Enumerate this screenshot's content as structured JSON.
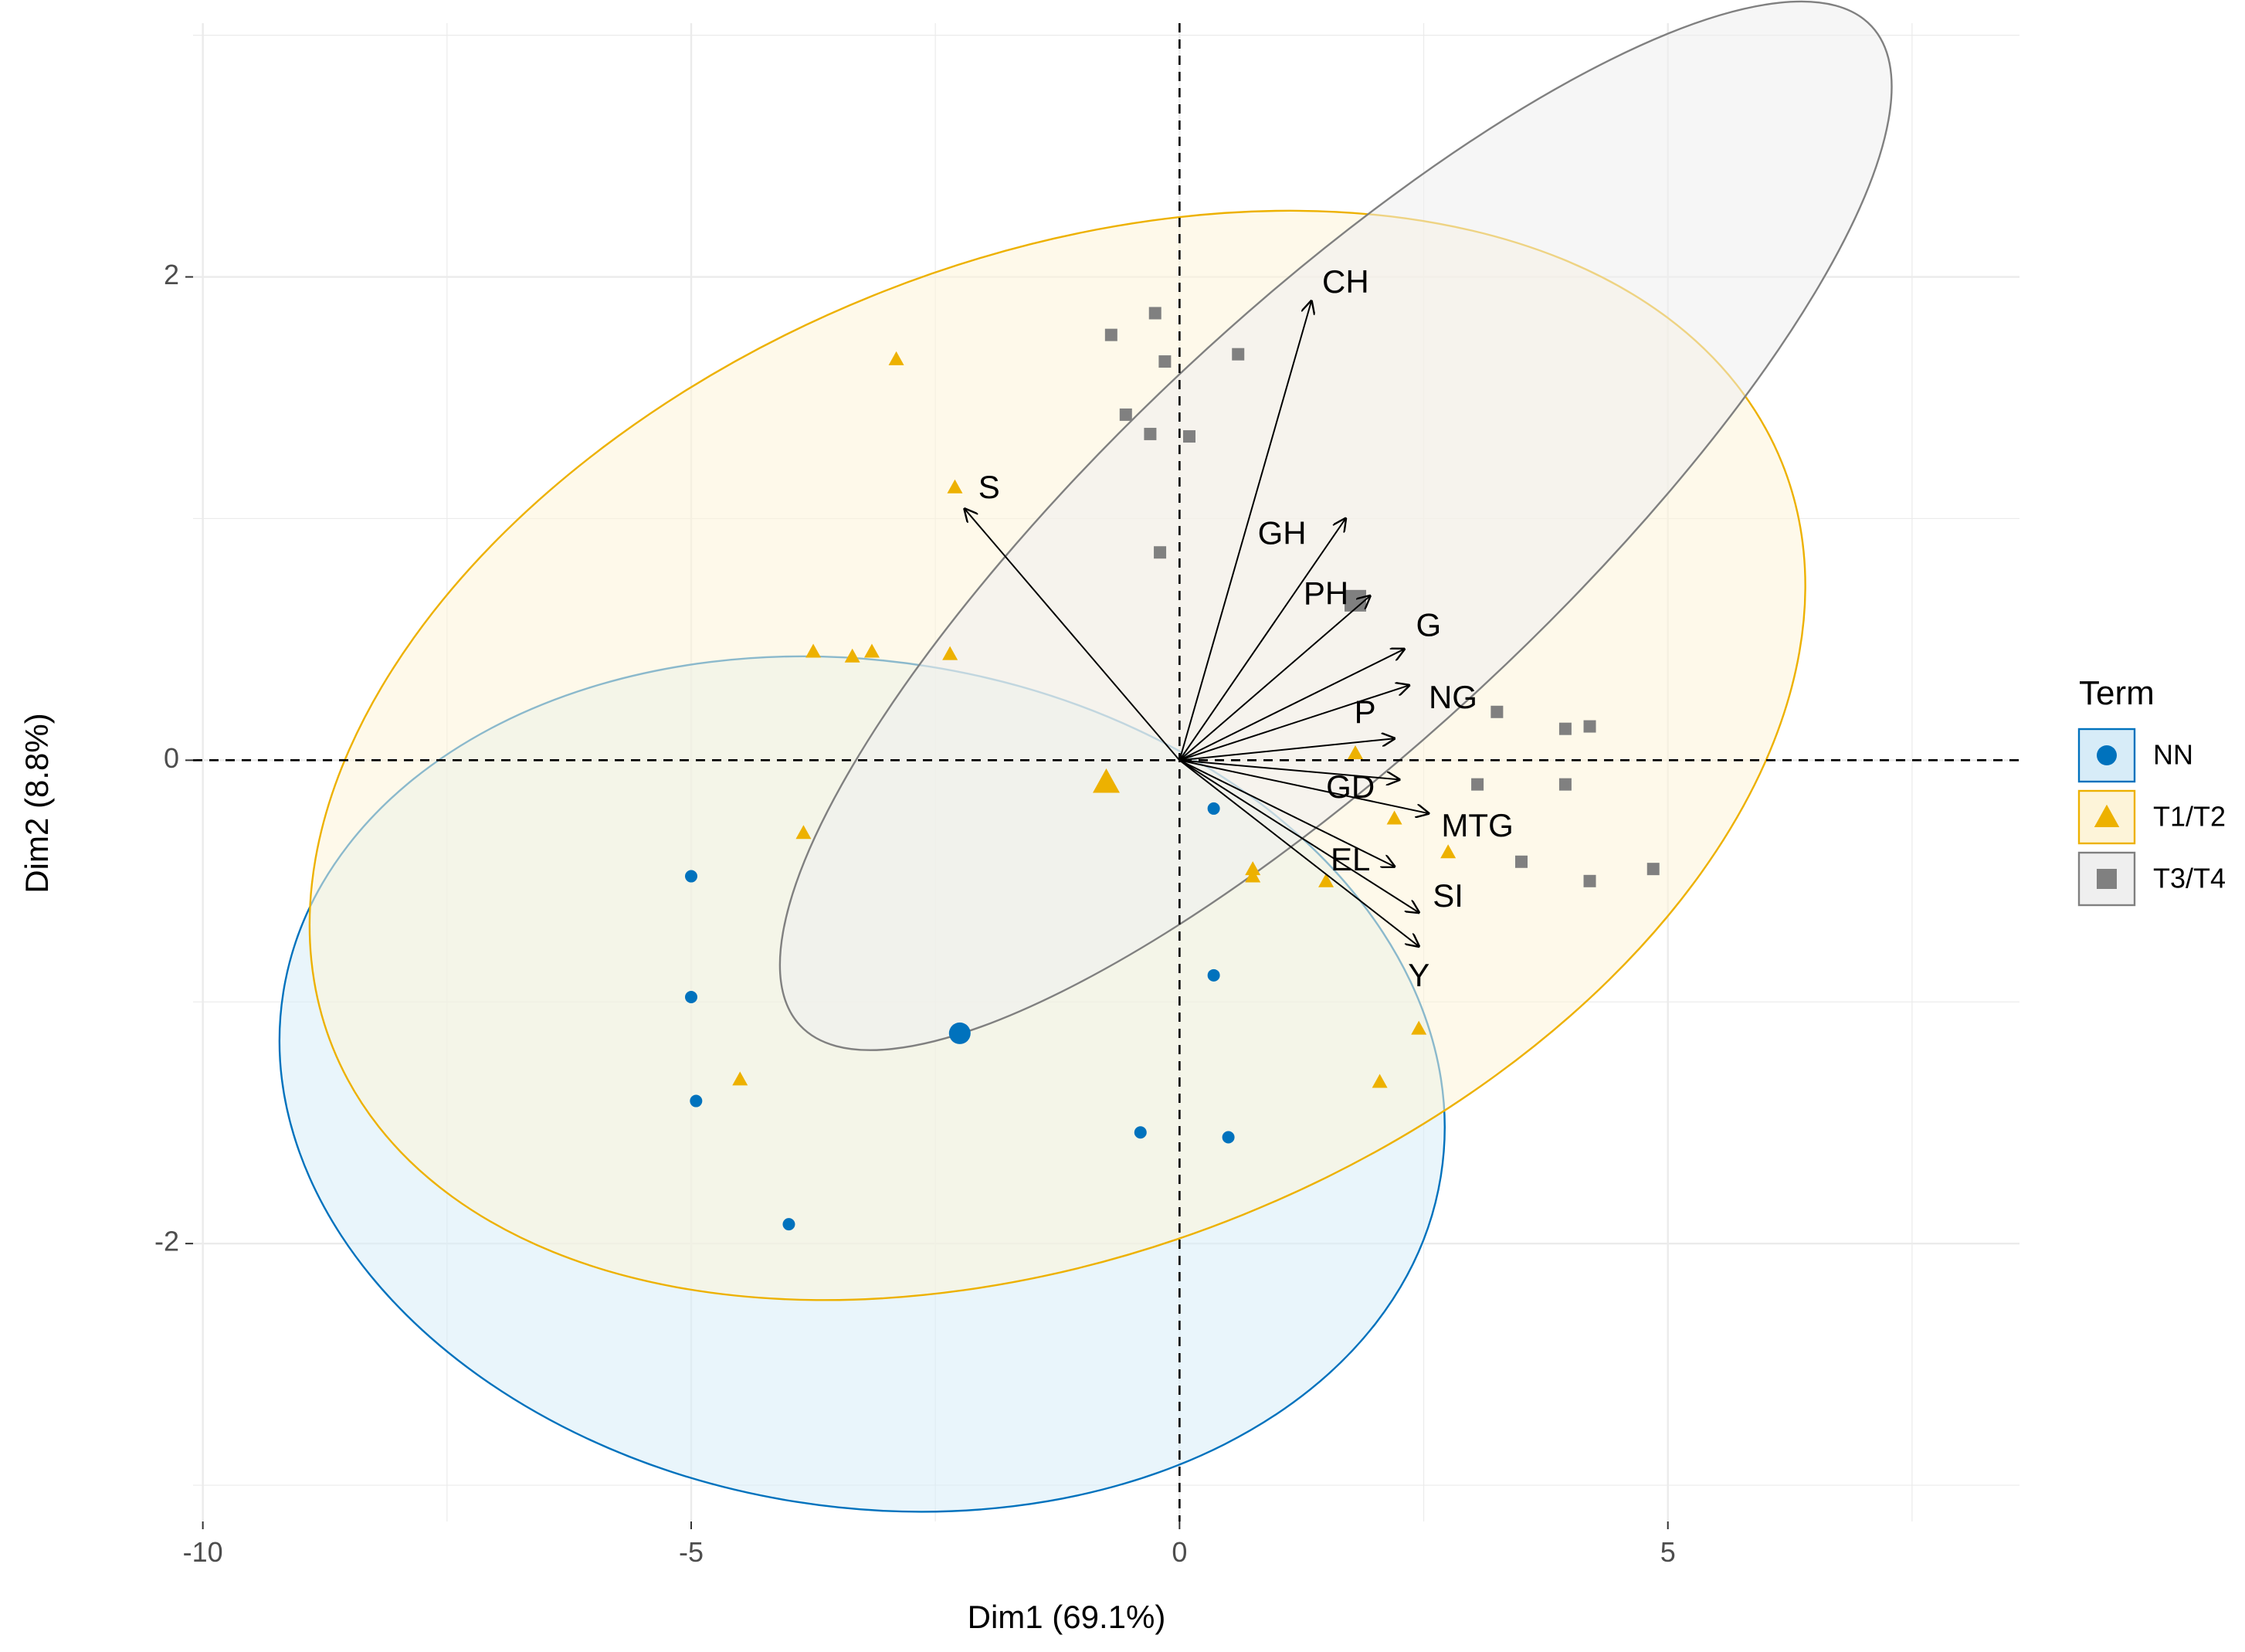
{
  "chart_data": {
    "type": "scatter",
    "subtype": "pca-biplot",
    "xlabel": "Dim1 (69.1%)",
    "ylabel": "Dim2 (8.8%)",
    "xlim": [
      -10.1,
      8.6
    ],
    "ylim": [
      -3.15,
      3.05
    ],
    "xticks": [
      -10,
      -5,
      0,
      5
    ],
    "yticks": [
      -2,
      0,
      2
    ],
    "xtick_labels": [
      "-10",
      "-5",
      "0",
      "5"
    ],
    "ytick_labels": [
      "-2",
      "0",
      "2"
    ],
    "grid": true,
    "legend": {
      "title": "Term",
      "position": "right",
      "entries": [
        {
          "label": "NN",
          "color": "#0072BD",
          "shape": "circle"
        },
        {
          "label": "T1/T2",
          "color": "#EDB100",
          "shape": "triangle"
        },
        {
          "label": "T3/T4",
          "color": "#808080",
          "shape": "square"
        }
      ]
    },
    "series": [
      {
        "name": "NN",
        "shape": "circle",
        "color": "#0072BD",
        "fill": "#D7ECF8",
        "points": [
          [
            -5.0,
            -0.48
          ],
          [
            -5.0,
            -0.98
          ],
          [
            -4.95,
            -1.41
          ],
          [
            -4.0,
            -1.92
          ],
          [
            -0.4,
            -1.54
          ],
          [
            0.5,
            -1.56
          ],
          [
            0.35,
            -0.89
          ],
          [
            0.35,
            -0.2
          ]
        ],
        "centroid": [
          -2.25,
          -1.13
        ],
        "ellipse": {
          "center": [
            -3.25,
            -1.34
          ],
          "rx": 6.0,
          "ry": 1.75,
          "angle": 9.0
        }
      },
      {
        "name": "T1/T2",
        "shape": "triangle",
        "color": "#EDB100",
        "fill": "#FDF4D9",
        "points": [
          [
            -2.9,
            1.66
          ],
          [
            -2.3,
            1.13
          ],
          [
            -3.75,
            0.45
          ],
          [
            -3.35,
            0.43
          ],
          [
            -3.15,
            0.45
          ],
          [
            -2.35,
            0.44
          ],
          [
            -3.85,
            -0.3
          ],
          [
            -4.5,
            -1.32
          ],
          [
            0.75,
            -0.45
          ],
          [
            0.75,
            -0.48
          ],
          [
            1.5,
            -0.5
          ],
          [
            1.8,
            0.03
          ],
          [
            2.2,
            -0.24
          ],
          [
            2.75,
            -0.38
          ],
          [
            2.45,
            -1.11
          ],
          [
            2.05,
            -1.33
          ]
        ],
        "centroid": [
          -0.75,
          -0.09
        ],
        "ellipse": {
          "center": [
            -1.25,
            0.02
          ],
          "rx": 8.0,
          "ry": 2.05,
          "angle": -22.0
        }
      },
      {
        "name": "T3/T4",
        "shape": "square",
        "color": "#808080",
        "fill": "#EFEFEF",
        "points": [
          [
            -0.7,
            1.76
          ],
          [
            -0.25,
            1.85
          ],
          [
            -0.15,
            1.65
          ],
          [
            0.6,
            1.68
          ],
          [
            -0.55,
            1.43
          ],
          [
            -0.3,
            1.35
          ],
          [
            0.1,
            1.34
          ],
          [
            -0.2,
            0.86
          ],
          [
            1.8,
            0.66
          ],
          [
            3.25,
            0.2
          ],
          [
            3.95,
            0.13
          ],
          [
            4.2,
            0.14
          ],
          [
            3.05,
            -0.1
          ],
          [
            3.95,
            -0.1
          ],
          [
            3.5,
            -0.42
          ],
          [
            4.2,
            -0.5
          ],
          [
            4.85,
            -0.45
          ]
        ],
        "centroid": [
          1.8,
          0.66
        ],
        "ellipse": {
          "center": [
            1.6,
            0.97
          ],
          "rx": 7.5,
          "ry": 0.9,
          "angle": -43.0
        }
      }
    ],
    "variables": [
      {
        "name": "CH",
        "end": [
          1.35,
          1.9
        ],
        "label_at": [
          1.7,
          1.97
        ]
      },
      {
        "name": "GH",
        "end": [
          1.7,
          1.0
        ],
        "label_at": [
          1.05,
          0.93
        ]
      },
      {
        "name": "PH",
        "end": [
          1.95,
          0.68
        ],
        "label_at": [
          1.5,
          0.68
        ]
      },
      {
        "name": "G",
        "end": [
          2.3,
          0.46
        ],
        "label_at": [
          2.55,
          0.55
        ]
      },
      {
        "name": "NG",
        "end": [
          2.35,
          0.31
        ],
        "label_at": [
          2.8,
          0.25
        ]
      },
      {
        "name": "P",
        "end": [
          2.2,
          0.09
        ],
        "label_at": [
          1.9,
          0.19
        ]
      },
      {
        "name": "GD",
        "end": [
          2.25,
          -0.08
        ],
        "label_at": [
          1.75,
          -0.12
        ]
      },
      {
        "name": "MTG",
        "end": [
          2.55,
          -0.22
        ],
        "label_at": [
          3.05,
          -0.28
        ]
      },
      {
        "name": "EL",
        "end": [
          2.2,
          -0.44
        ],
        "label_at": [
          1.75,
          -0.42
        ]
      },
      {
        "name": "SI",
        "end": [
          2.45,
          -0.63
        ],
        "label_at": [
          2.75,
          -0.57
        ]
      },
      {
        "name": "Y",
        "end": [
          2.45,
          -0.77
        ],
        "label_at": [
          2.45,
          -0.9
        ]
      },
      {
        "name": "S",
        "end": [
          -2.2,
          1.04
        ],
        "label_at": [
          -1.95,
          1.12
        ]
      }
    ],
    "reference_lines": {
      "x": 0,
      "y": 0,
      "style": "dashed"
    }
  }
}
